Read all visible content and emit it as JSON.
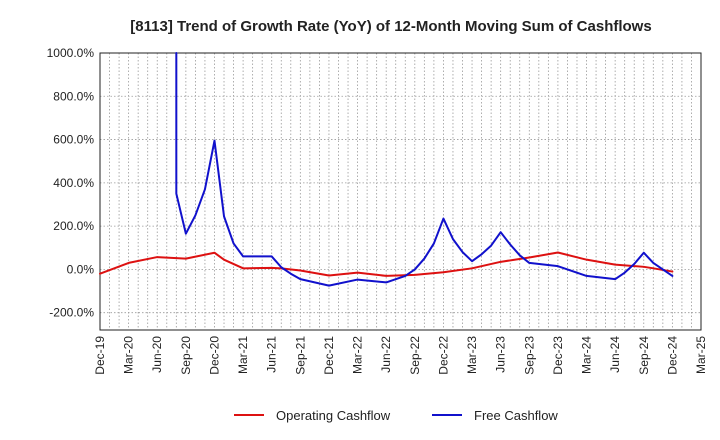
{
  "chart_data": {
    "type": "line",
    "title": "[8113]  Trend of Growth Rate (YoY) of 12-Month Moving Sum of Cashflows",
    "xlabel": "",
    "ylabel": "",
    "ylim": [
      -280,
      1000
    ],
    "y_ticks": [
      1000,
      800,
      600,
      400,
      200,
      0,
      -200
    ],
    "y_tick_labels": [
      "1000.0%",
      "800.0%",
      "600.0%",
      "400.0%",
      "200.0%",
      "0.0%",
      "-200.0%"
    ],
    "x_range": [
      "2019-12",
      "2025-03"
    ],
    "x_tick_labels": [
      "Dec-19",
      "Mar-20",
      "Jun-20",
      "Sep-20",
      "Dec-20",
      "Mar-21",
      "Jun-21",
      "Sep-21",
      "Dec-21",
      "Mar-22",
      "Jun-22",
      "Sep-22",
      "Dec-22",
      "Mar-23",
      "Jun-23",
      "Sep-23",
      "Dec-23",
      "Mar-24",
      "Jun-24",
      "Sep-24",
      "Dec-24",
      "Mar-25"
    ],
    "grid": true,
    "legend_position": "bottom",
    "series": [
      {
        "name": "Operating Cashflow",
        "color": "#dd1111",
        "points": [
          [
            "2019-12",
            -20
          ],
          [
            "2020-03",
            30
          ],
          [
            "2020-06",
            57
          ],
          [
            "2020-09",
            50
          ],
          [
            "2020-12",
            77
          ],
          [
            "2021-01",
            45
          ],
          [
            "2021-03",
            5
          ],
          [
            "2021-06",
            7
          ],
          [
            "2021-07",
            5
          ],
          [
            "2021-09",
            -5
          ],
          [
            "2021-12",
            -28
          ],
          [
            "2022-03",
            -15
          ],
          [
            "2022-06",
            -30
          ],
          [
            "2022-09",
            -25
          ],
          [
            "2022-12",
            -13
          ],
          [
            "2023-03",
            5
          ],
          [
            "2023-06",
            35
          ],
          [
            "2023-09",
            55
          ],
          [
            "2023-12",
            78
          ],
          [
            "2024-03",
            45
          ],
          [
            "2024-06",
            22
          ],
          [
            "2024-09",
            12
          ],
          [
            "2024-10",
            5
          ],
          [
            "2024-12",
            -10
          ]
        ]
      },
      {
        "name": "Free Cashflow",
        "color": "#1111cc",
        "points": [
          [
            "2020-08",
            1000
          ],
          [
            "2020-08",
            350
          ],
          [
            "2020-09",
            165
          ],
          [
            "2020-10",
            250
          ],
          [
            "2020-11",
            370
          ],
          [
            "2020-12",
            595
          ],
          [
            "2021-01",
            245
          ],
          [
            "2021-02",
            120
          ],
          [
            "2021-03",
            60
          ],
          [
            "2021-04",
            60
          ],
          [
            "2021-05",
            60
          ],
          [
            "2021-06",
            60
          ],
          [
            "2021-07",
            10
          ],
          [
            "2021-08",
            -20
          ],
          [
            "2021-09",
            -45
          ],
          [
            "2021-12",
            -75
          ],
          [
            "2022-03",
            -47
          ],
          [
            "2022-06",
            -60
          ],
          [
            "2022-08",
            -30
          ],
          [
            "2022-09",
            0
          ],
          [
            "2022-10",
            50
          ],
          [
            "2022-11",
            120
          ],
          [
            "2022-12",
            235
          ],
          [
            "2023-01",
            140
          ],
          [
            "2023-02",
            80
          ],
          [
            "2023-03",
            38
          ],
          [
            "2023-04",
            70
          ],
          [
            "2023-05",
            110
          ],
          [
            "2023-06",
            172
          ],
          [
            "2023-07",
            115
          ],
          [
            "2023-08",
            65
          ],
          [
            "2023-09",
            30
          ],
          [
            "2023-12",
            15
          ],
          [
            "2024-03",
            -30
          ],
          [
            "2024-06",
            -45
          ],
          [
            "2024-07",
            -15
          ],
          [
            "2024-08",
            25
          ],
          [
            "2024-09",
            77
          ],
          [
            "2024-10",
            30
          ],
          [
            "2024-12",
            -30
          ]
        ]
      }
    ]
  }
}
